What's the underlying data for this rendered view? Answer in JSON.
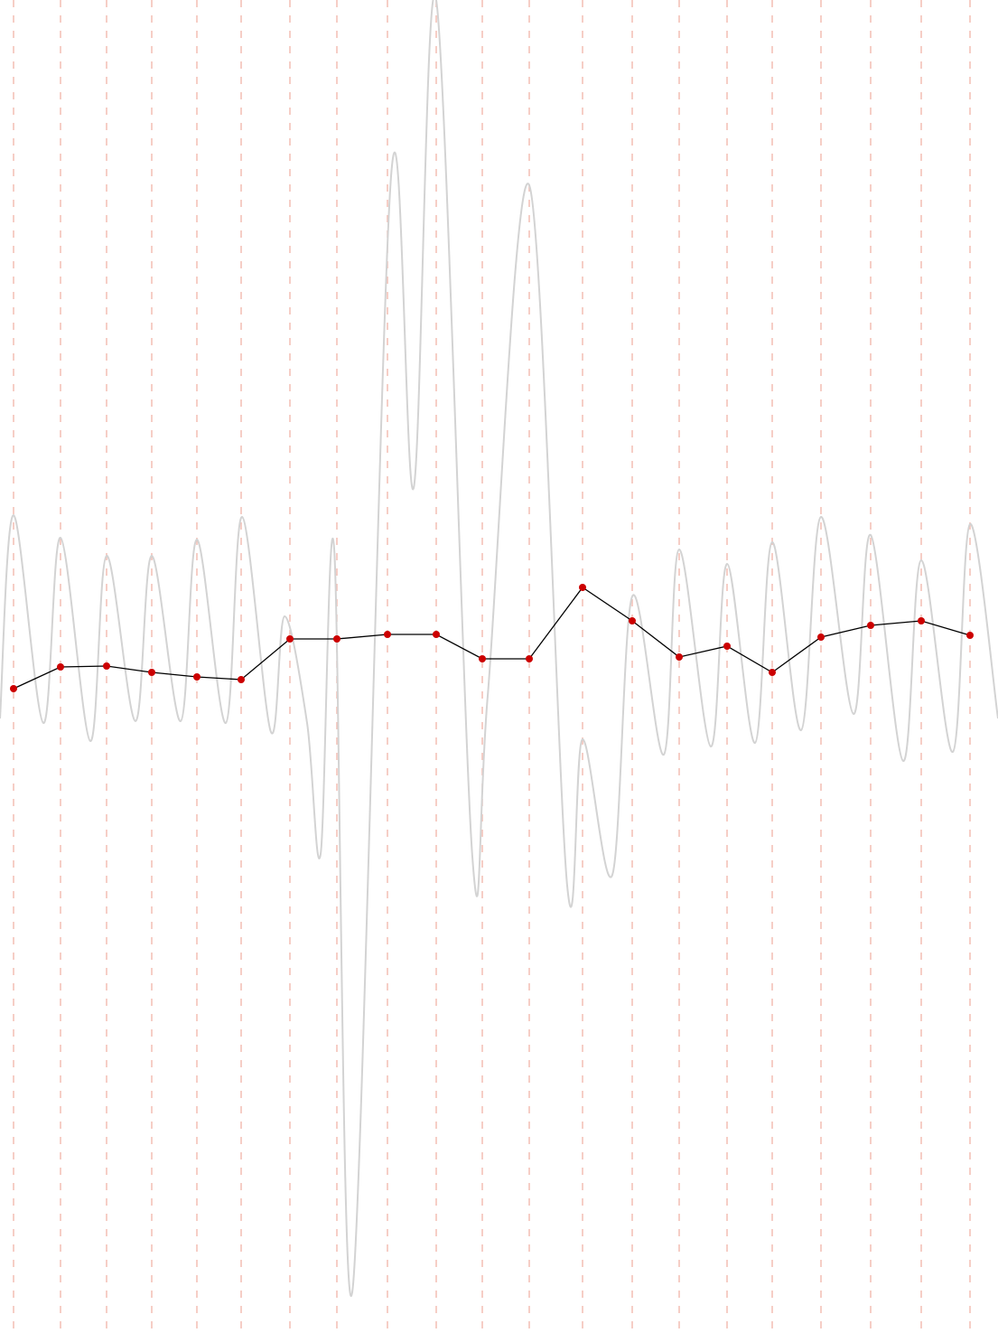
{
  "chart_data": {
    "type": "line",
    "xlim": [
      0,
      1105
    ],
    "ylim": [
      -738,
      737
    ],
    "grid": true,
    "grid_color": "#f4bdb3",
    "signal": {
      "color": "#d3d3d3",
      "x": [
        0,
        15,
        48,
        67,
        100,
        118,
        150,
        168,
        200,
        218,
        250,
        268,
        300,
        315,
        340,
        355,
        370,
        390,
        433,
        458,
        483,
        523,
        540,
        586,
        628,
        645,
        678,
        700,
        735,
        752,
        787,
        805,
        836,
        855,
        887,
        909,
        945,
        964,
        1000,
        1020,
        1055,
        1074,
        1105
      ],
      "values": [
        -58,
        167,
        -63,
        142,
        -83,
        122,
        -61,
        122,
        -61,
        140,
        -63,
        165,
        -73,
        55,
        -63,
        -208,
        130,
        -693,
        542,
        197,
        737,
        -211,
        -33,
        532,
        -243,
        -81,
        -231,
        77,
        -98,
        129,
        -89,
        113,
        -85,
        137,
        -71,
        165,
        -53,
        145,
        -105,
        117,
        -95,
        157,
        -58
      ]
    },
    "samples": {
      "line_color": "#000000",
      "marker_color": "#cc0000",
      "x": [
        15,
        67,
        118,
        168,
        218,
        267,
        321,
        373,
        429,
        483,
        534,
        586,
        645,
        700,
        752,
        805,
        855,
        909,
        964,
        1020,
        1074
      ],
      "values": [
        -25,
        -1,
        0,
        -7,
        -12,
        -15,
        30,
        30,
        35,
        35,
        8,
        8,
        87,
        50,
        10,
        22,
        -7,
        32,
        45,
        50,
        34
      ]
    }
  }
}
